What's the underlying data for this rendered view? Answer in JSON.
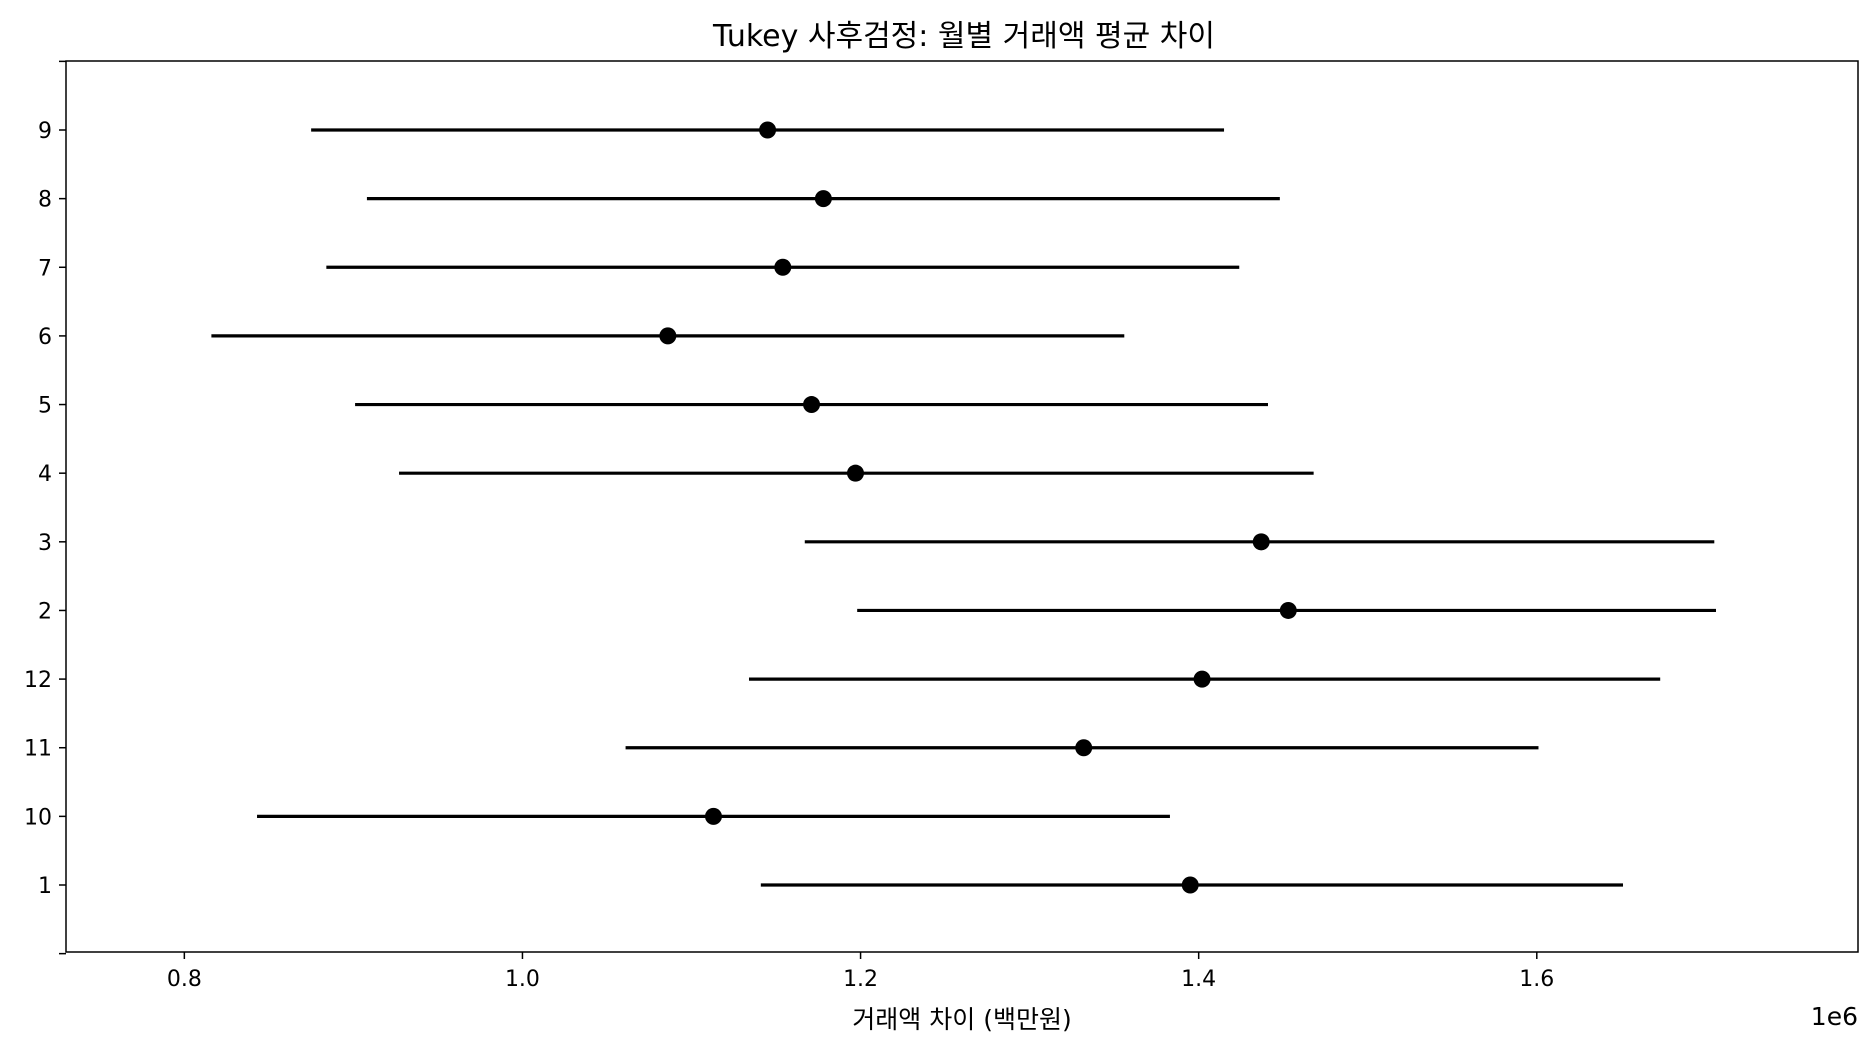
{
  "chart_data": {
    "type": "errorbar",
    "title": "Tukey 사후검정: 월별 거래액 평균 차이",
    "xlabel": "거래액 차이 (백만원)",
    "ylabel": "",
    "x_offset_label": "1e6",
    "x_scale_factor": 1000000,
    "xlim": [
      730000,
      1790000
    ],
    "x_ticks": [
      800000,
      1000000,
      1200000,
      1400000,
      1600000
    ],
    "x_tick_labels": [
      "0.8",
      "1.0",
      "1.2",
      "1.4",
      "1.6"
    ],
    "grid": false,
    "categories": [
      "1",
      "10",
      "11",
      "12",
      "2",
      "3",
      "4",
      "5",
      "6",
      "7",
      "8",
      "9"
    ],
    "means": [
      1395000,
      1113000,
      1332000,
      1402000,
      1453000,
      1437000,
      1197000,
      1171000,
      1086000,
      1154000,
      1178000,
      1145000
    ],
    "lower": [
      1141000,
      843000,
      1061000,
      1134000,
      1198000,
      1167000,
      927000,
      901000,
      816000,
      884000,
      908000,
      875000
    ],
    "upper": [
      1651000,
      1383000,
      1601000,
      1673000,
      1706000,
      1705000,
      1468000,
      1441000,
      1356000,
      1424000,
      1448000,
      1415000
    ],
    "colors": {
      "marker": "#000000",
      "line": "#000000",
      "axis": "#000000"
    }
  }
}
